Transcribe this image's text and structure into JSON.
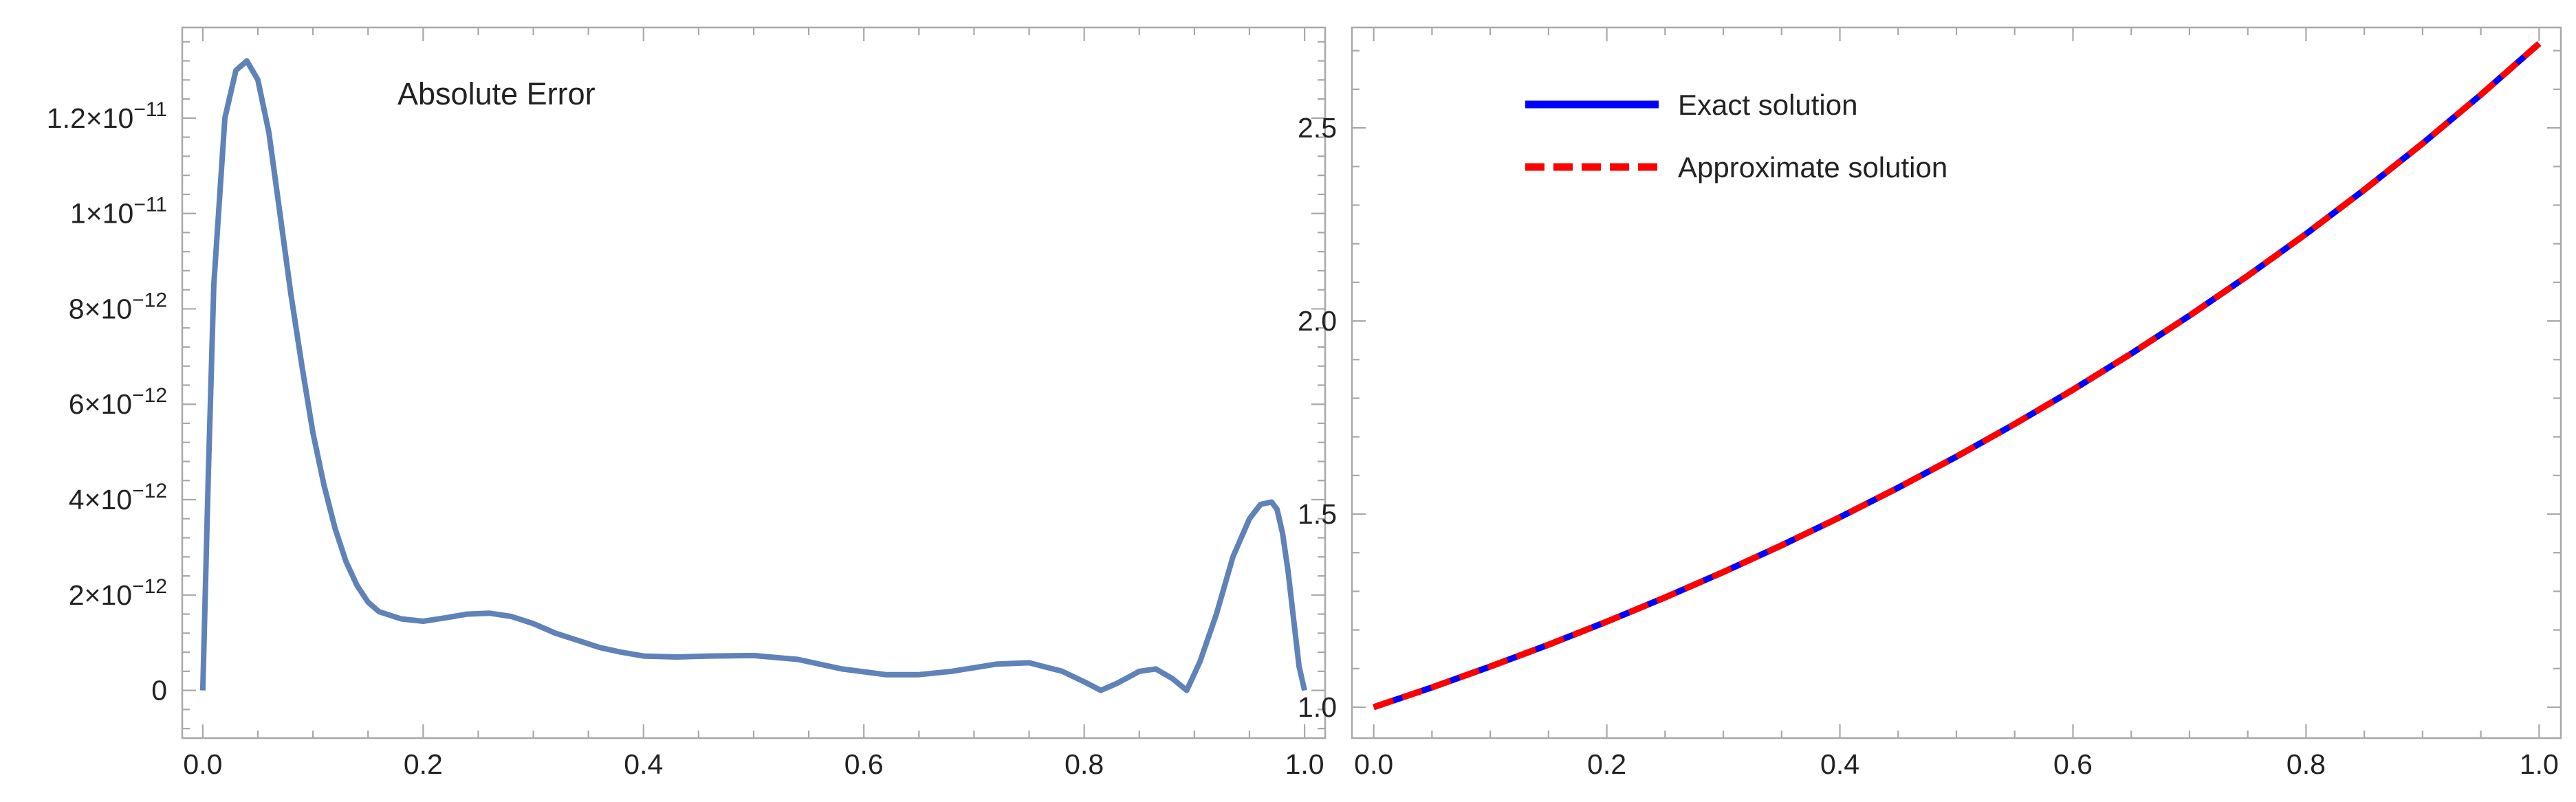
{
  "chart_data": [
    {
      "type": "line",
      "annotation": "Absolute Error",
      "xlim": [
        0,
        1
      ],
      "ylim": [
        -1e-12,
        1.39e-11
      ],
      "x_ticks": [
        {
          "value": 0.0,
          "label": "0.0"
        },
        {
          "value": 0.2,
          "label": "0.2"
        },
        {
          "value": 0.4,
          "label": "0.4"
        },
        {
          "value": 0.6,
          "label": "0.6"
        },
        {
          "value": 0.8,
          "label": "0.8"
        },
        {
          "value": 1.0,
          "label": "1.0"
        }
      ],
      "y_ticks": [
        {
          "value": 0,
          "mantissa": "0",
          "exponent": ""
        },
        {
          "value": 2e-12,
          "mantissa": "2×10",
          "exponent": "−12"
        },
        {
          "value": 4e-12,
          "mantissa": "4×10",
          "exponent": "−12"
        },
        {
          "value": 6e-12,
          "mantissa": "6×10",
          "exponent": "−12"
        },
        {
          "value": 8e-12,
          "mantissa": "8×10",
          "exponent": "−12"
        },
        {
          "value": 1e-11,
          "mantissa": "1×10",
          "exponent": "−11"
        },
        {
          "value": 1.2e-11,
          "mantissa": "1.2×10",
          "exponent": "−11"
        }
      ],
      "series": [
        {
          "color": "#5f82b8",
          "x": [
            0.0,
            0.005,
            0.01,
            0.02,
            0.03,
            0.04,
            0.05,
            0.06,
            0.07,
            0.08,
            0.09,
            0.1,
            0.11,
            0.12,
            0.13,
            0.14,
            0.15,
            0.16,
            0.18,
            0.2,
            0.22,
            0.24,
            0.26,
            0.28,
            0.3,
            0.32,
            0.34,
            0.36,
            0.38,
            0.4,
            0.43,
            0.46,
            0.5,
            0.54,
            0.58,
            0.62,
            0.65,
            0.68,
            0.72,
            0.75,
            0.78,
            0.8,
            0.815,
            0.83,
            0.85,
            0.865,
            0.88,
            0.893,
            0.905,
            0.92,
            0.935,
            0.95,
            0.96,
            0.97,
            0.975,
            0.98,
            0.985,
            0.99,
            0.995,
            1.0
          ],
          "y": [
            0.0,
            4.5e-12,
            8.5e-12,
            1.2e-11,
            1.3e-11,
            1.32e-11,
            1.28e-11,
            1.17e-11,
            1e-11,
            8.3e-12,
            6.8e-12,
            5.4e-12,
            4.3e-12,
            3.4e-12,
            2.7e-12,
            2.2e-12,
            1.85e-12,
            1.65e-12,
            1.5e-12,
            1.45e-12,
            1.52e-12,
            1.6e-12,
            1.62e-12,
            1.55e-12,
            1.4e-12,
            1.2e-12,
            1.05e-12,
            9e-13,
            8e-13,
            7.2e-13,
            7e-13,
            7.2e-13,
            7.3e-13,
            6.5e-13,
            4.5e-13,
            3.3e-13,
            3.3e-13,
            4e-13,
            5.5e-13,
            5.8e-13,
            4e-13,
            1.8e-13,
            0.0,
            1.5e-13,
            4e-13,
            4.5e-13,
            2.5e-13,
            0.0,
            6e-13,
            1.6e-12,
            2.8e-12,
            3.6e-12,
            3.9e-12,
            3.95e-12,
            3.8e-12,
            3.3e-12,
            2.5e-12,
            1.5e-12,
            5e-13,
            0.0
          ]
        }
      ]
    },
    {
      "type": "line",
      "xlim": [
        0,
        1
      ],
      "ylim": [
        0.92,
        2.76
      ],
      "x_ticks": [
        {
          "value": 0.0,
          "label": "0.0"
        },
        {
          "value": 0.2,
          "label": "0.2"
        },
        {
          "value": 0.4,
          "label": "0.4"
        },
        {
          "value": 0.6,
          "label": "0.6"
        },
        {
          "value": 0.8,
          "label": "0.8"
        },
        {
          "value": 1.0,
          "label": "1.0"
        }
      ],
      "y_ticks": [
        {
          "value": 1.0,
          "label": "1.0"
        },
        {
          "value": 1.5,
          "label": "1.5"
        },
        {
          "value": 2.0,
          "label": "2.0"
        },
        {
          "value": 2.5,
          "label": "2.5"
        }
      ],
      "legend_position": "top-left",
      "series": [
        {
          "name": "Exact solution",
          "color": "#0000ff",
          "style": "solid",
          "x": [
            0.0,
            0.05,
            0.1,
            0.15,
            0.2,
            0.25,
            0.3,
            0.35,
            0.4,
            0.45,
            0.5,
            0.55,
            0.6,
            0.65,
            0.7,
            0.75,
            0.8,
            0.85,
            0.9,
            0.95,
            1.0
          ],
          "y": [
            1.0,
            1.0513,
            1.1052,
            1.1618,
            1.2214,
            1.284,
            1.3499,
            1.4191,
            1.4918,
            1.5683,
            1.6487,
            1.7333,
            1.8221,
            1.9155,
            2.0138,
            2.117,
            2.2255,
            2.3396,
            2.4596,
            2.5857,
            2.7183
          ]
        },
        {
          "name": "Approximate solution",
          "color": "#ff0000",
          "style": "dashed",
          "x": [
            0.0,
            0.05,
            0.1,
            0.15,
            0.2,
            0.25,
            0.3,
            0.35,
            0.4,
            0.45,
            0.5,
            0.55,
            0.6,
            0.65,
            0.7,
            0.75,
            0.8,
            0.85,
            0.9,
            0.95,
            1.0
          ],
          "y": [
            1.0,
            1.0513,
            1.1052,
            1.1618,
            1.2214,
            1.284,
            1.3499,
            1.4191,
            1.4918,
            1.5683,
            1.6487,
            1.7333,
            1.8221,
            1.9155,
            2.0138,
            2.117,
            2.2255,
            2.3396,
            2.4596,
            2.5857,
            2.7183
          ]
        }
      ]
    }
  ]
}
